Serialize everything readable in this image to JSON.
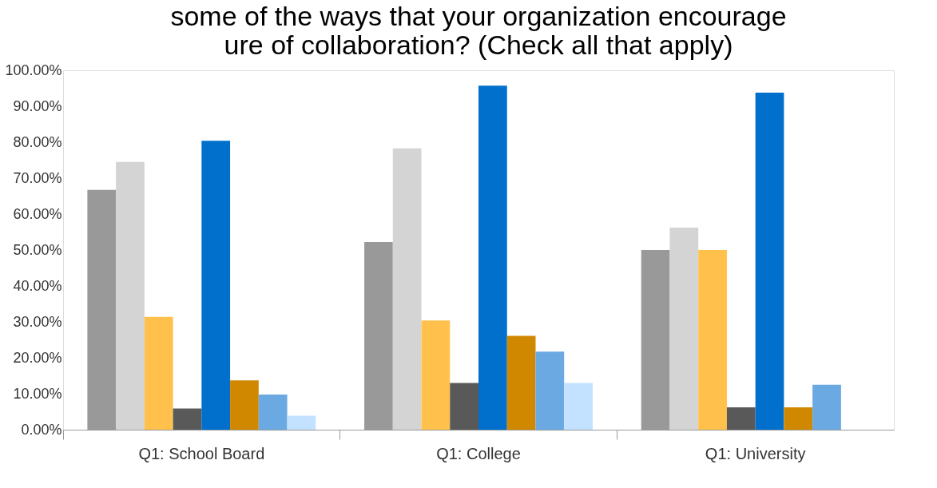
{
  "chart_data": {
    "type": "bar",
    "title": [
      "some of the ways that your organization encourage",
      "ure of collaboration? (Check all that apply)"
    ],
    "categories": [
      "Q1: School Board",
      "Q1: College",
      "Q1: University"
    ],
    "series": [
      {
        "color": "#999999",
        "values": [
          66.7,
          52.2,
          50.0
        ]
      },
      {
        "color": "#d4d4d4",
        "values": [
          74.5,
          78.3,
          56.2
        ]
      },
      {
        "color": "#ffc04c",
        "values": [
          31.4,
          30.4,
          50.0
        ]
      },
      {
        "color": "#595959",
        "values": [
          5.9,
          13.0,
          6.2
        ]
      },
      {
        "color": "#0070cc",
        "values": [
          80.4,
          95.7,
          93.8
        ]
      },
      {
        "color": "#d08800",
        "values": [
          13.7,
          26.1,
          6.2
        ]
      },
      {
        "color": "#6aa9e2",
        "values": [
          9.8,
          21.7,
          12.5
        ]
      },
      {
        "color": "#c3e2ff",
        "values": [
          3.9,
          13.0,
          null
        ]
      }
    ],
    "ylim": [
      0,
      100
    ],
    "yticks": [
      {
        "value": 0,
        "label": "0.00%"
      },
      {
        "value": 10,
        "label": "10.00%"
      },
      {
        "value": 20,
        "label": "20.00%"
      },
      {
        "value": 30,
        "label": "30.00%"
      },
      {
        "value": 40,
        "label": "40.00%"
      },
      {
        "value": 50,
        "label": "50.00%"
      },
      {
        "value": 60,
        "label": "60.00%"
      },
      {
        "value": 70,
        "label": "70.00%"
      },
      {
        "value": 80,
        "label": "80.00%"
      },
      {
        "value": 90,
        "label": "90.00%"
      },
      {
        "value": 100,
        "label": "100.00%"
      }
    ],
    "grid": false,
    "legend": false
  }
}
